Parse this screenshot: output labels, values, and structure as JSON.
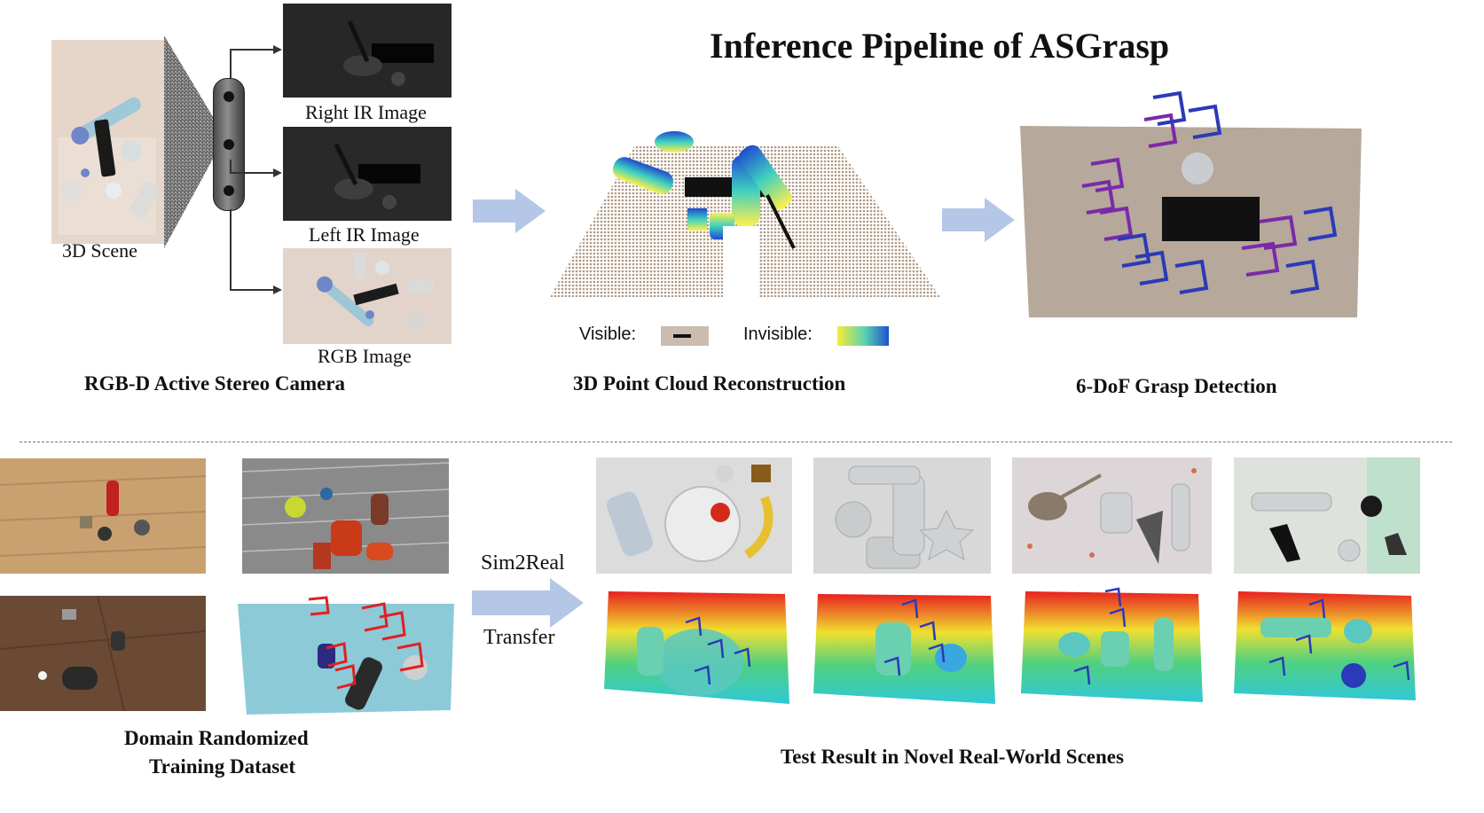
{
  "title": "Inference Pipeline of ASGrasp",
  "camera_section": {
    "scene_label": "3D Scene",
    "right_ir_label": "Right IR Image",
    "left_ir_label": "Left IR Image",
    "rgb_label": "RGB Image",
    "section_label": "RGB-D Active Stereo Camera"
  },
  "reconstruction_section": {
    "section_label": "3D Point Cloud Reconstruction",
    "legend_visible": "Visible:",
    "legend_invisible": "Invisible:"
  },
  "grasp_section": {
    "section_label": "6-DoF Grasp Detection"
  },
  "training_section": {
    "label_line1": "Domain Randomized",
    "label_line2": "Training Dataset"
  },
  "transfer": {
    "line1": "Sim2Real",
    "line2": "Transfer"
  },
  "test_section": {
    "label": "Test Result in Novel Real-World Scenes"
  },
  "colors": {
    "arrow_fill": "#b4c7e7",
    "table_beige": "#c8b8a8",
    "grasp_purple": "#7a2aa8",
    "grasp_blue": "#2a3ab8",
    "train_grasp_red": "#e02020"
  }
}
